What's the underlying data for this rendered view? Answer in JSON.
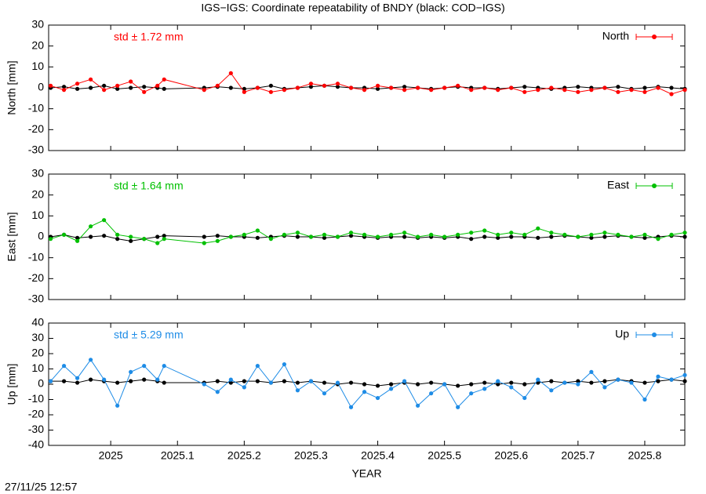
{
  "title": "IGS−IGS: Coordinate repeatability of BNDY (black: COD−IGS)",
  "footer": "27/11/25 12:57",
  "chart_data": [
    {
      "type": "line",
      "ylabel": "North [mm]",
      "annotation": "std ± 1.72 mm",
      "x": [
        2024.91,
        2024.93,
        2024.95,
        2024.97,
        2024.99,
        2025.01,
        2025.03,
        2025.05,
        2025.07,
        2025.08,
        2025.14,
        2025.16,
        2025.18,
        2025.2,
        2025.22,
        2025.24,
        2025.26,
        2025.28,
        2025.3,
        2025.32,
        2025.34,
        2025.36,
        2025.38,
        2025.4,
        2025.42,
        2025.44,
        2025.46,
        2025.48,
        2025.5,
        2025.52,
        2025.54,
        2025.56,
        2025.58,
        2025.6,
        2025.62,
        2025.64,
        2025.66,
        2025.68,
        2025.7,
        2025.72,
        2025.74,
        2025.76,
        2025.78,
        2025.8,
        2025.82,
        2025.84,
        2025.86
      ],
      "xlim": [
        2024.907,
        2025.86
      ],
      "xticks": [
        2025,
        2025.1,
        2025.2,
        2025.3,
        2025.4,
        2025.5,
        2025.6,
        2025.7,
        2025.8
      ],
      "ylim": [
        -30,
        30
      ],
      "yticks": [
        -30,
        -20,
        -10,
        0,
        10,
        20,
        30
      ],
      "legend": "upper right",
      "series": [
        {
          "color": "#000000",
          "values": [
            0,
            0.5,
            -0.5,
            0,
            1,
            -0.5,
            0,
            0.5,
            0,
            -0.5,
            0,
            0.5,
            0,
            -0.5,
            0,
            1,
            -0.5,
            0,
            0.5,
            1,
            0.5,
            0,
            0,
            -0.5,
            0,
            0.5,
            0,
            -0.5,
            0,
            0.5,
            0,
            0,
            -0.5,
            0,
            0.5,
            0,
            -0.5,
            0,
            0.5,
            0,
            0,
            0.5,
            -0.5,
            0,
            0.5,
            0,
            -0.5
          ]
        },
        {
          "name": "North",
          "color": "#ff0000",
          "values": [
            1,
            -1,
            2,
            4,
            -1,
            1,
            3,
            -2,
            1,
            4,
            -1,
            1,
            7,
            -2,
            0,
            -2,
            -1,
            0,
            2,
            1,
            2,
            0,
            -1,
            1,
            0,
            -1,
            0,
            -1,
            0,
            1,
            -1,
            0,
            -1,
            0,
            -2,
            -1,
            0,
            -1,
            -2,
            -1,
            0,
            -2,
            -1,
            -2,
            0,
            -3,
            -1
          ]
        }
      ]
    },
    {
      "type": "line",
      "ylabel": "East [mm]",
      "annotation": "std ± 1.64 mm",
      "x": [
        2024.91,
        2024.93,
        2024.95,
        2024.97,
        2024.99,
        2025.01,
        2025.03,
        2025.05,
        2025.07,
        2025.08,
        2025.14,
        2025.16,
        2025.18,
        2025.2,
        2025.22,
        2025.24,
        2025.26,
        2025.28,
        2025.3,
        2025.32,
        2025.34,
        2025.36,
        2025.38,
        2025.4,
        2025.42,
        2025.44,
        2025.46,
        2025.48,
        2025.5,
        2025.52,
        2025.54,
        2025.56,
        2025.58,
        2025.6,
        2025.62,
        2025.64,
        2025.66,
        2025.68,
        2025.7,
        2025.72,
        2025.74,
        2025.76,
        2025.78,
        2025.8,
        2025.82,
        2025.84,
        2025.86
      ],
      "xlim": [
        2024.907,
        2025.86
      ],
      "xticks": [
        2025,
        2025.1,
        2025.2,
        2025.3,
        2025.4,
        2025.5,
        2025.6,
        2025.7,
        2025.8
      ],
      "ylim": [
        -30,
        30
      ],
      "yticks": [
        -30,
        -20,
        -10,
        0,
        10,
        20,
        30
      ],
      "legend": "upper right",
      "series": [
        {
          "color": "#000000",
          "values": [
            0,
            1,
            -0.5,
            0,
            0.5,
            -1,
            -2,
            -1,
            0,
            0.5,
            0,
            0.5,
            0,
            0,
            -0.5,
            0,
            0.5,
            0,
            0,
            -0.5,
            0,
            0.5,
            0,
            -0.5,
            0,
            0,
            -0.5,
            0,
            -0.5,
            0,
            -1,
            0,
            -0.5,
            0,
            0,
            -0.5,
            0,
            0.5,
            0,
            -0.5,
            0,
            0.5,
            0,
            -0.5,
            0,
            0.5,
            0
          ]
        },
        {
          "name": "East",
          "color": "#00c000",
          "values": [
            -1,
            1,
            -2,
            5,
            8,
            1,
            0,
            -1,
            -3,
            -1,
            -3,
            -2,
            0,
            1,
            3,
            -1,
            1,
            2,
            0,
            1,
            0,
            2,
            1,
            0,
            1,
            2,
            0,
            1,
            0,
            1,
            2,
            3,
            1,
            2,
            1,
            4,
            2,
            1,
            0,
            1,
            2,
            1,
            0,
            1,
            -1,
            1,
            2
          ]
        }
      ]
    },
    {
      "type": "line",
      "ylabel": "Up [mm]",
      "xlabel": "YEAR",
      "annotation": "std ± 5.29 mm",
      "x": [
        2024.91,
        2024.93,
        2024.95,
        2024.97,
        2024.99,
        2025.01,
        2025.03,
        2025.05,
        2025.07,
        2025.08,
        2025.14,
        2025.16,
        2025.18,
        2025.2,
        2025.22,
        2025.24,
        2025.26,
        2025.28,
        2025.3,
        2025.32,
        2025.34,
        2025.36,
        2025.38,
        2025.4,
        2025.42,
        2025.44,
        2025.46,
        2025.48,
        2025.5,
        2025.52,
        2025.54,
        2025.56,
        2025.58,
        2025.6,
        2025.62,
        2025.64,
        2025.66,
        2025.68,
        2025.7,
        2025.72,
        2025.74,
        2025.76,
        2025.78,
        2025.8,
        2025.82,
        2025.84,
        2025.86
      ],
      "xlim": [
        2024.907,
        2025.86
      ],
      "xticks": [
        2025,
        2025.1,
        2025.2,
        2025.3,
        2025.4,
        2025.5,
        2025.6,
        2025.7,
        2025.8
      ],
      "ylim": [
        -40,
        40
      ],
      "yticks": [
        -40,
        -30,
        -20,
        -10,
        0,
        10,
        20,
        30,
        40
      ],
      "legend": "upper right",
      "series": [
        {
          "color": "#000000",
          "values": [
            2,
            2,
            1,
            3,
            2,
            1,
            2,
            3,
            2,
            1,
            1,
            2,
            1,
            2,
            2,
            1,
            2,
            1,
            2,
            1,
            0,
            1,
            0,
            -1,
            0,
            1,
            0,
            1,
            0,
            -1,
            0,
            1,
            0,
            1,
            0,
            1,
            2,
            1,
            2,
            1,
            2,
            3,
            2,
            1,
            2,
            3,
            2
          ]
        },
        {
          "name": "Up",
          "color": "#1e8ce6",
          "values": [
            2,
            12,
            4,
            16,
            3,
            -14,
            8,
            12,
            3,
            12,
            0,
            -5,
            3,
            -2,
            12,
            1,
            13,
            -4,
            2,
            -6,
            1,
            -15,
            -5,
            -9,
            -3,
            2,
            -14,
            -6,
            0,
            -15,
            -6,
            -3,
            2,
            -2,
            -9,
            3,
            -4,
            1,
            0,
            8,
            -2,
            3,
            1,
            -10,
            5,
            3,
            6
          ]
        }
      ]
    }
  ]
}
